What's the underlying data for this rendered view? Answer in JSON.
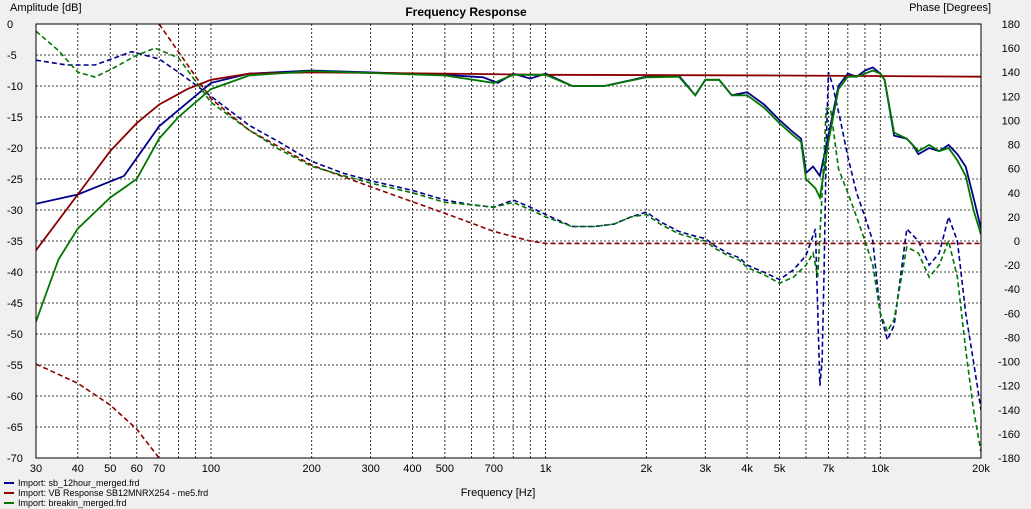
{
  "chart_data": {
    "type": "line",
    "title": "Frequency Response",
    "xlabel": "Frequency [Hz]",
    "ylabel_left": "Amplitude [dB]",
    "ylabel_right": "Phase [Degrees]",
    "x_scale": "log",
    "xlim": [
      30,
      20000
    ],
    "ylim_left": [
      -70,
      0
    ],
    "ylim_right": [
      -180,
      180
    ],
    "grid": true,
    "legend_position": "bottom-left",
    "x_ticks": [
      {
        "v": 30,
        "label": "30"
      },
      {
        "v": 40,
        "label": "40"
      },
      {
        "v": 50,
        "label": "50"
      },
      {
        "v": 60,
        "label": "60"
      },
      {
        "v": 70,
        "label": "70"
      },
      {
        "v": 100,
        "label": "100"
      },
      {
        "v": 200,
        "label": "200"
      },
      {
        "v": 300,
        "label": "300"
      },
      {
        "v": 400,
        "label": "400"
      },
      {
        "v": 500,
        "label": "500"
      },
      {
        "v": 700,
        "label": "700"
      },
      {
        "v": 1000,
        "label": "1k"
      },
      {
        "v": 2000,
        "label": "2k"
      },
      {
        "v": 3000,
        "label": "3k"
      },
      {
        "v": 4000,
        "label": "4k"
      },
      {
        "v": 5000,
        "label": "5k"
      },
      {
        "v": 7000,
        "label": "7k"
      },
      {
        "v": 10000,
        "label": "10k"
      },
      {
        "v": 20000,
        "label": "20k"
      }
    ],
    "y_left_ticks": [
      0,
      -5,
      -10,
      -15,
      -20,
      -25,
      -30,
      -35,
      -40,
      -45,
      -50,
      -55,
      -60,
      -65,
      -70
    ],
    "y_right_ticks": [
      180,
      160,
      140,
      120,
      100,
      80,
      60,
      40,
      20,
      0,
      -20,
      -40,
      -60,
      -80,
      -100,
      -120,
      -140,
      -160,
      -180
    ],
    "series": [
      {
        "name": "Import: sb_12hour_merged.frd",
        "color": "#00008b",
        "magnitude": [
          [
            30,
            -29
          ],
          [
            40,
            -27.5
          ],
          [
            55,
            -24.5
          ],
          [
            70,
            -16.5
          ],
          [
            100,
            -9.5
          ],
          [
            130,
            -8
          ],
          [
            200,
            -7.5
          ],
          [
            300,
            -7.8
          ],
          [
            500,
            -8.2
          ],
          [
            650,
            -8.6
          ],
          [
            720,
            -9.5
          ],
          [
            800,
            -8
          ],
          [
            900,
            -8.8
          ],
          [
            1000,
            -8
          ],
          [
            1200,
            -10
          ],
          [
            1500,
            -10
          ],
          [
            2000,
            -8.5
          ],
          [
            2500,
            -8.3
          ],
          [
            2800,
            -11.5
          ],
          [
            3000,
            -9
          ],
          [
            3300,
            -9
          ],
          [
            3600,
            -11.5
          ],
          [
            4000,
            -11
          ],
          [
            4500,
            -13
          ],
          [
            5000,
            -15.5
          ],
          [
            5500,
            -17.5
          ],
          [
            5800,
            -18.5
          ],
          [
            6000,
            -24
          ],
          [
            6300,
            -23
          ],
          [
            6600,
            -24.5
          ],
          [
            7000,
            -18
          ],
          [
            7500,
            -10
          ],
          [
            8000,
            -8
          ],
          [
            8500,
            -8.5
          ],
          [
            9000,
            -7.5
          ],
          [
            9500,
            -7
          ],
          [
            10000,
            -8
          ],
          [
            10300,
            -9
          ],
          [
            11000,
            -18
          ],
          [
            12000,
            -18.5
          ],
          [
            12500,
            -19.5
          ],
          [
            13000,
            -21
          ],
          [
            14000,
            -20
          ],
          [
            15000,
            -20.5
          ],
          [
            16000,
            -19.5
          ],
          [
            17000,
            -21
          ],
          [
            18000,
            -23
          ],
          [
            19000,
            -28
          ],
          [
            20000,
            -33
          ]
        ],
        "phase": [
          [
            30,
            150
          ],
          [
            37,
            146
          ],
          [
            45,
            146
          ],
          [
            58,
            157
          ],
          [
            70,
            151
          ],
          [
            80,
            140
          ],
          [
            100,
            120
          ],
          [
            130,
            96
          ],
          [
            160,
            82
          ],
          [
            200,
            66
          ],
          [
            250,
            56
          ],
          [
            300,
            50
          ],
          [
            400,
            42
          ],
          [
            500,
            34
          ],
          [
            600,
            30
          ],
          [
            700,
            28
          ],
          [
            800,
            34
          ],
          [
            900,
            28
          ],
          [
            1000,
            22
          ],
          [
            1200,
            12
          ],
          [
            1400,
            12
          ],
          [
            1600,
            14
          ],
          [
            1800,
            20
          ],
          [
            2000,
            24
          ],
          [
            2200,
            16
          ],
          [
            2500,
            8
          ],
          [
            2800,
            4
          ],
          [
            3000,
            2
          ],
          [
            3200,
            -4
          ],
          [
            3500,
            -10
          ],
          [
            3800,
            -14
          ],
          [
            4000,
            -20
          ],
          [
            4500,
            -26
          ],
          [
            5000,
            -32
          ],
          [
            5500,
            -24
          ],
          [
            6000,
            -12
          ],
          [
            6400,
            10
          ],
          [
            6600,
            -120
          ],
          [
            6700,
            -100
          ],
          [
            6800,
            -20
          ],
          [
            6900,
            80
          ],
          [
            7000,
            140
          ],
          [
            7200,
            130
          ],
          [
            7600,
            100
          ],
          [
            8000,
            70
          ],
          [
            8500,
            40
          ],
          [
            9000,
            20
          ],
          [
            9500,
            0
          ],
          [
            10000,
            -60
          ],
          [
            10500,
            -82
          ],
          [
            11000,
            -70
          ],
          [
            12000,
            10
          ],
          [
            13000,
            0
          ],
          [
            14000,
            -20
          ],
          [
            15000,
            -10
          ],
          [
            16000,
            20
          ],
          [
            17000,
            0
          ],
          [
            18000,
            -60
          ],
          [
            19000,
            -100
          ],
          [
            20000,
            -140
          ]
        ]
      },
      {
        "name": "Import: VB Response SB12MNRX254 - me5.frd",
        "color": "#8b0000",
        "magnitude": [
          [
            30,
            -36.5
          ],
          [
            40,
            -27.5
          ],
          [
            50,
            -20.5
          ],
          [
            60,
            -16
          ],
          [
            70,
            -13
          ],
          [
            85,
            -10.5
          ],
          [
            100,
            -9
          ],
          [
            130,
            -8
          ],
          [
            200,
            -7.8
          ],
          [
            500,
            -8
          ],
          [
            1000,
            -8.2
          ],
          [
            5000,
            -8.3
          ],
          [
            20000,
            -8.5
          ]
        ],
        "phase": [
          [
            70,
            180
          ],
          [
            100,
            118
          ],
          [
            130,
            92
          ],
          [
            160,
            78
          ],
          [
            200,
            63
          ],
          [
            300,
            45
          ],
          [
            500,
            23
          ],
          [
            700,
            8
          ],
          [
            900,
            0
          ],
          [
            1000,
            -2
          ],
          [
            20000,
            -2
          ]
        ],
        "phase_extra": [
          [
            30,
            -102
          ],
          [
            40,
            -118
          ],
          [
            50,
            -136
          ],
          [
            60,
            -156
          ],
          [
            70,
            -180
          ]
        ]
      },
      {
        "name": "Import: breakin_merged.frd",
        "color": "#007700",
        "magnitude": [
          [
            30,
            -48
          ],
          [
            35,
            -38
          ],
          [
            40,
            -33
          ],
          [
            50,
            -28
          ],
          [
            60,
            -25
          ],
          [
            70,
            -18.5
          ],
          [
            80,
            -15
          ],
          [
            100,
            -10.5
          ],
          [
            130,
            -8.3
          ],
          [
            200,
            -7.6
          ],
          [
            300,
            -7.9
          ],
          [
            500,
            -8.3
          ],
          [
            700,
            -9.5
          ],
          [
            800,
            -8.2
          ],
          [
            1000,
            -8.2
          ],
          [
            1200,
            -10
          ],
          [
            1500,
            -10
          ],
          [
            2000,
            -8.6
          ],
          [
            2500,
            -8.5
          ],
          [
            2800,
            -11.5
          ],
          [
            3000,
            -9
          ],
          [
            3300,
            -9
          ],
          [
            3600,
            -11.5
          ],
          [
            4000,
            -11.5
          ],
          [
            4500,
            -13.5
          ],
          [
            5000,
            -16
          ],
          [
            5500,
            -18
          ],
          [
            5800,
            -19
          ],
          [
            6000,
            -25
          ],
          [
            6400,
            -26.5
          ],
          [
            6600,
            -28
          ],
          [
            7000,
            -19
          ],
          [
            7500,
            -10.5
          ],
          [
            8000,
            -8.5
          ],
          [
            8500,
            -8.5
          ],
          [
            9000,
            -8
          ],
          [
            9500,
            -7.5
          ],
          [
            10000,
            -8
          ],
          [
            10300,
            -9
          ],
          [
            11000,
            -17.5
          ],
          [
            12000,
            -18.5
          ],
          [
            13000,
            -20.5
          ],
          [
            14000,
            -19.5
          ],
          [
            15000,
            -20.5
          ],
          [
            16000,
            -20
          ],
          [
            17000,
            -22
          ],
          [
            18000,
            -24.5
          ],
          [
            19000,
            -30
          ],
          [
            20000,
            -34
          ]
        ],
        "phase": [
          [
            30,
            174
          ],
          [
            35,
            158
          ],
          [
            40,
            140
          ],
          [
            45,
            136
          ],
          [
            50,
            142
          ],
          [
            60,
            154
          ],
          [
            68,
            160
          ],
          [
            80,
            152
          ],
          [
            100,
            115
          ],
          [
            130,
            92
          ],
          [
            160,
            76
          ],
          [
            200,
            62
          ],
          [
            250,
            54
          ],
          [
            300,
            48
          ],
          [
            400,
            40
          ],
          [
            500,
            32
          ],
          [
            600,
            30
          ],
          [
            700,
            28
          ],
          [
            800,
            32
          ],
          [
            900,
            26
          ],
          [
            1000,
            20
          ],
          [
            1200,
            12
          ],
          [
            1400,
            12
          ],
          [
            1600,
            14
          ],
          [
            1800,
            20
          ],
          [
            2000,
            22
          ],
          [
            2200,
            14
          ],
          [
            2500,
            6
          ],
          [
            2800,
            2
          ],
          [
            3000,
            0
          ],
          [
            3200,
            -6
          ],
          [
            3500,
            -12
          ],
          [
            3800,
            -16
          ],
          [
            4000,
            -22
          ],
          [
            4500,
            -28
          ],
          [
            5000,
            -35
          ],
          [
            5500,
            -30
          ],
          [
            6000,
            -20
          ],
          [
            6300,
            -10
          ],
          [
            6500,
            -30
          ],
          [
            6700,
            40
          ],
          [
            6900,
            110
          ],
          [
            7100,
            110
          ],
          [
            7500,
            60
          ],
          [
            8000,
            40
          ],
          [
            8500,
            20
          ],
          [
            9000,
            0
          ],
          [
            9500,
            -20
          ],
          [
            10000,
            -60
          ],
          [
            10500,
            -75
          ],
          [
            11000,
            -65
          ],
          [
            12000,
            -5
          ],
          [
            13000,
            -10
          ],
          [
            14000,
            -30
          ],
          [
            15000,
            -20
          ],
          [
            16000,
            0
          ],
          [
            17000,
            -30
          ],
          [
            18000,
            -90
          ],
          [
            19000,
            -140
          ],
          [
            20000,
            -175
          ]
        ]
      }
    ]
  }
}
